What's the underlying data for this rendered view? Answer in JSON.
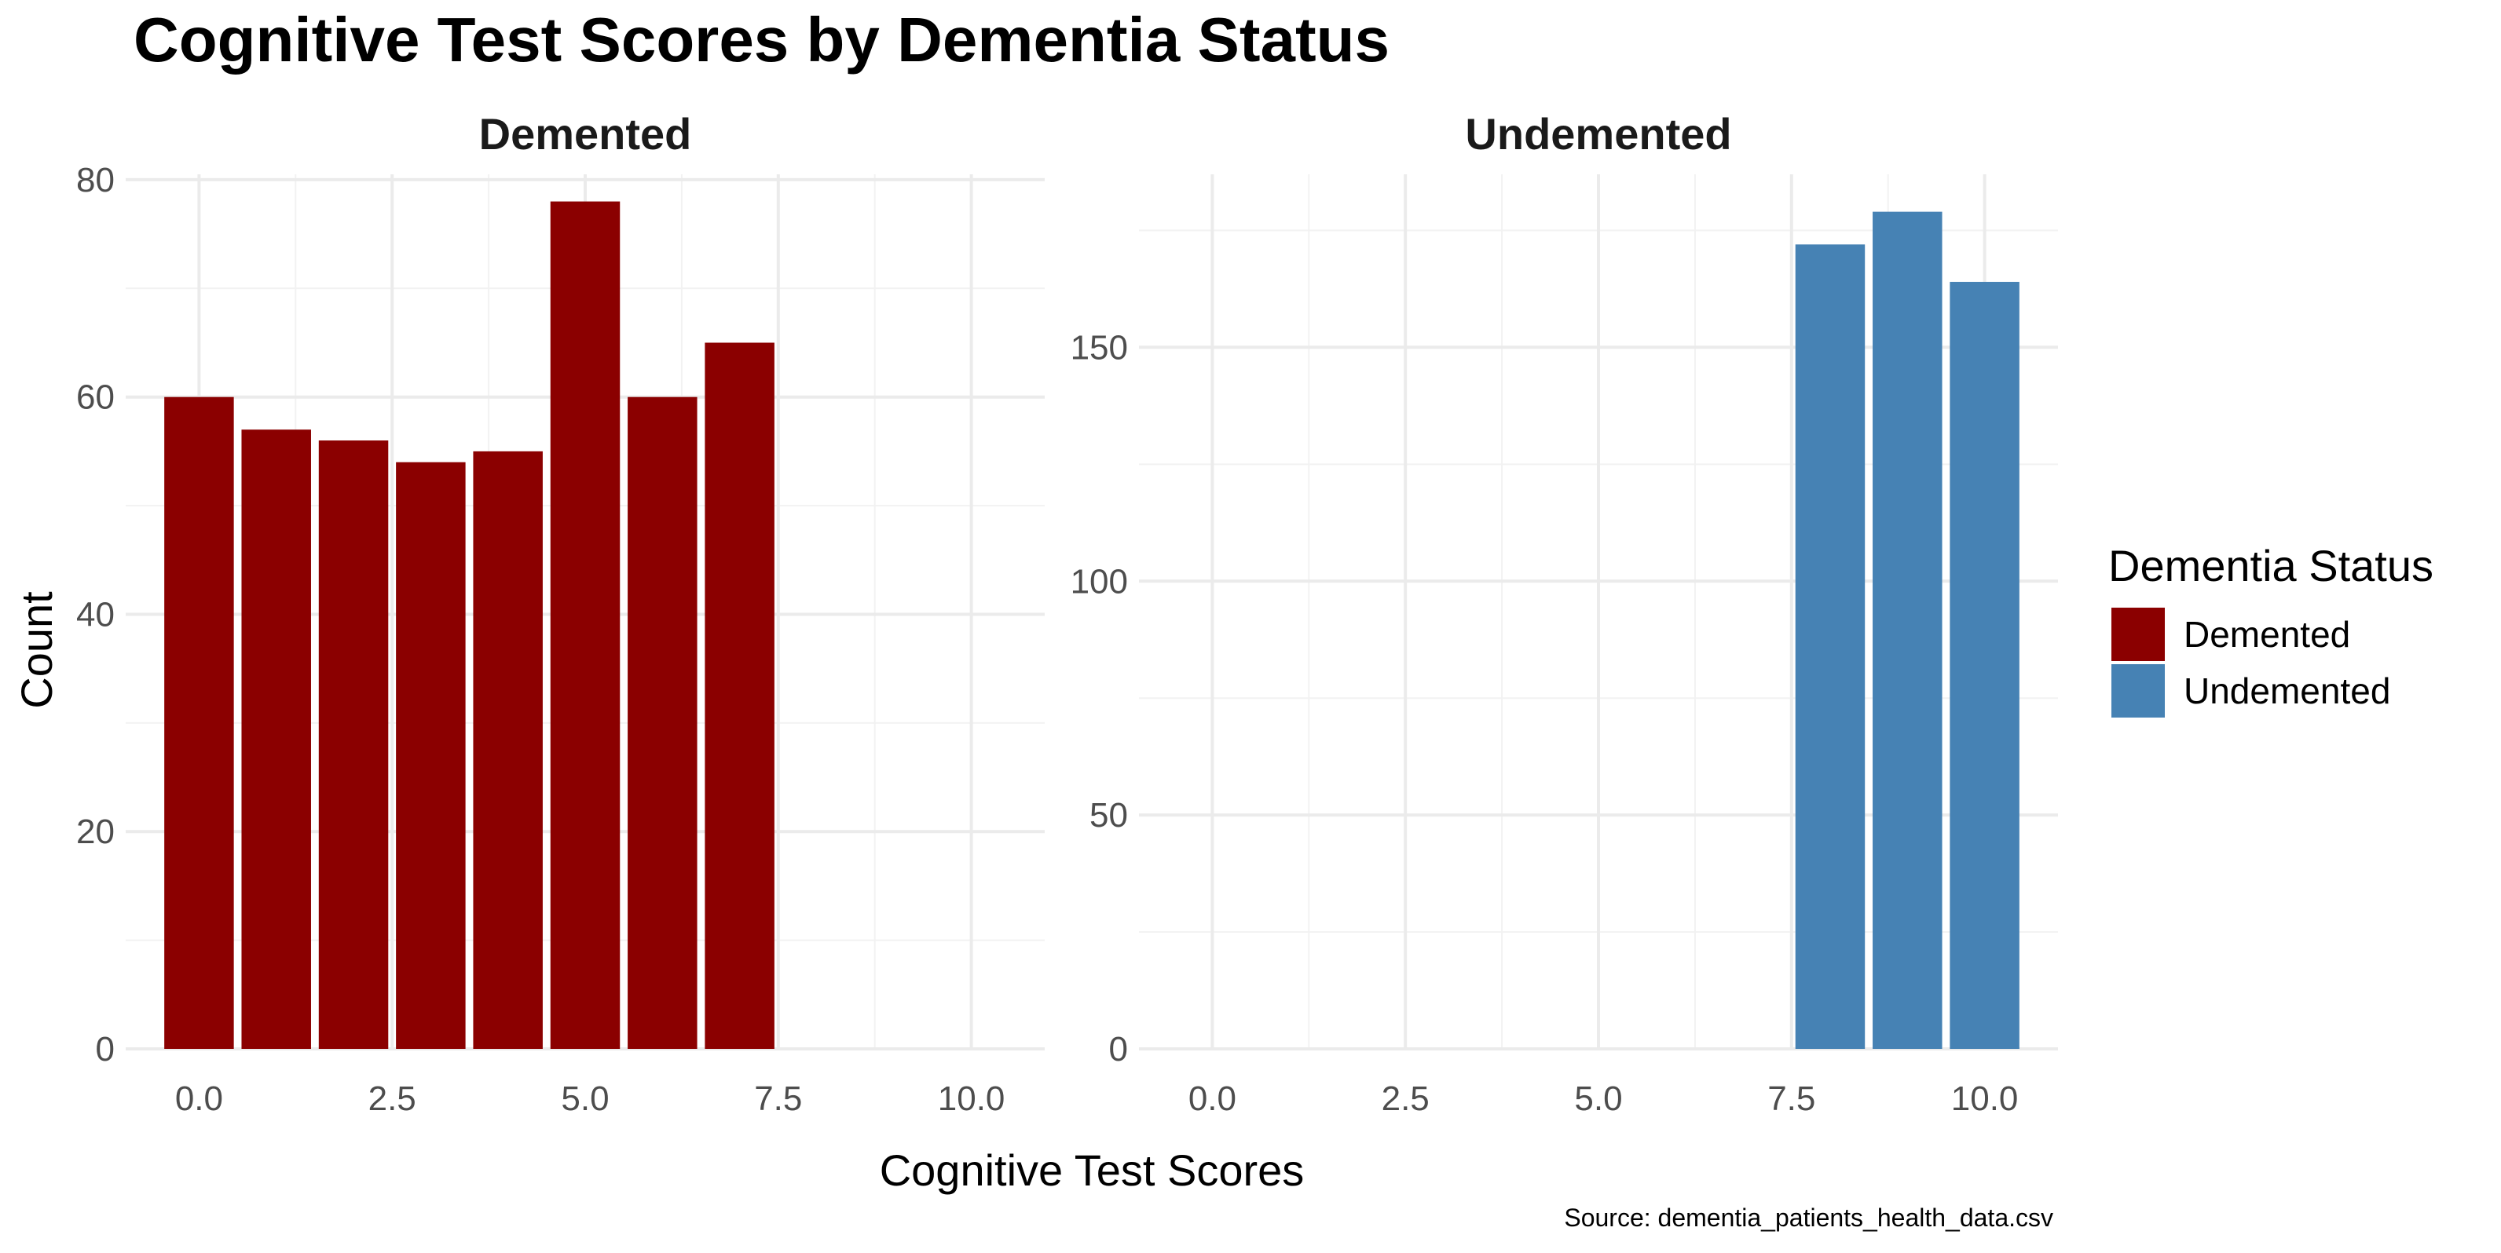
{
  "chart_data": {
    "type": "bar",
    "title": "Cognitive Test Scores by Dementia Status",
    "xlabel": "Cognitive Test Scores",
    "ylabel": "Count",
    "caption": "Source: dementia_patients_health_data.csv",
    "grid": true,
    "legend": {
      "title": "Dementia Status",
      "placement": "right",
      "entries": [
        {
          "label": "Demented",
          "color": "#8B0000"
        },
        {
          "label": "Undemented",
          "color": "#4682B4"
        }
      ]
    },
    "facets": [
      {
        "label": "Demented",
        "color": "#8B0000",
        "x": [
          0,
          1,
          2,
          3,
          4,
          5,
          6,
          7
        ],
        "values": [
          60,
          57,
          56,
          54,
          55,
          78,
          60,
          65
        ],
        "xlim": [
          -0.95,
          10.95
        ],
        "ylim": [
          0,
          80.5
        ],
        "xticks": [
          "0.0",
          "2.5",
          "5.0",
          "7.5",
          "10.0"
        ],
        "yticks": [
          "0",
          "20",
          "40",
          "60",
          "80"
        ]
      },
      {
        "label": "Undemented",
        "color": "#4682B4",
        "x": [
          8,
          9,
          10
        ],
        "values": [
          172,
          179,
          164
        ],
        "xlim": [
          -0.95,
          10.95
        ],
        "ylim": [
          0,
          187
        ],
        "xticks": [
          "0.0",
          "2.5",
          "5.0",
          "7.5",
          "10.0"
        ],
        "yticks": [
          "0",
          "50",
          "100",
          "150"
        ]
      }
    ]
  }
}
